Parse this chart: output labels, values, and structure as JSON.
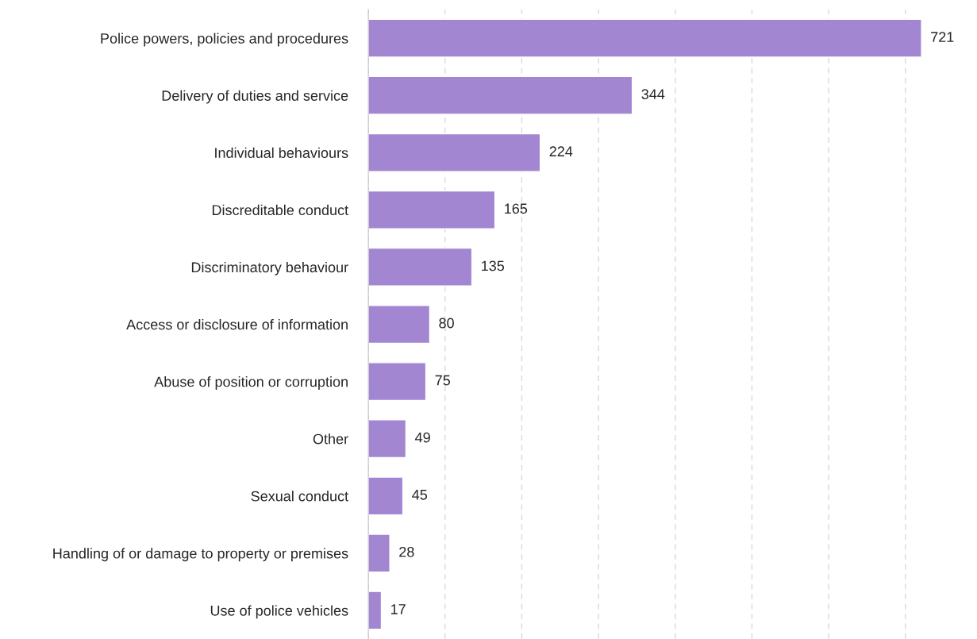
{
  "chart_data": {
    "type": "bar",
    "orientation": "horizontal",
    "categories": [
      "Police powers, policies and procedures",
      "Delivery of duties and service",
      "Individual behaviours",
      "Discreditable conduct",
      "Discriminatory behaviour",
      "Access or disclosure of information",
      "Abuse of position or corruption",
      "Other",
      "Sexual conduct",
      "Handling of or damage to property or premises",
      "Use of police vehicles"
    ],
    "values": [
      721,
      344,
      224,
      165,
      135,
      80,
      75,
      49,
      45,
      28,
      17
    ],
    "color": "#a286d1",
    "data_labels": true,
    "xticks": [
      {
        "value": 0,
        "label": null
      },
      {
        "value": 100,
        "label": null
      },
      {
        "value": 200,
        "label": null
      },
      {
        "value": 300,
        "label": null
      },
      {
        "value": 400,
        "label": null
      },
      {
        "value": 500,
        "label": null
      },
      {
        "value": 600,
        "label": null
      },
      {
        "value": 700,
        "label": null
      }
    ],
    "tick_labels": "y",
    "grid": "x",
    "legend": false
  }
}
